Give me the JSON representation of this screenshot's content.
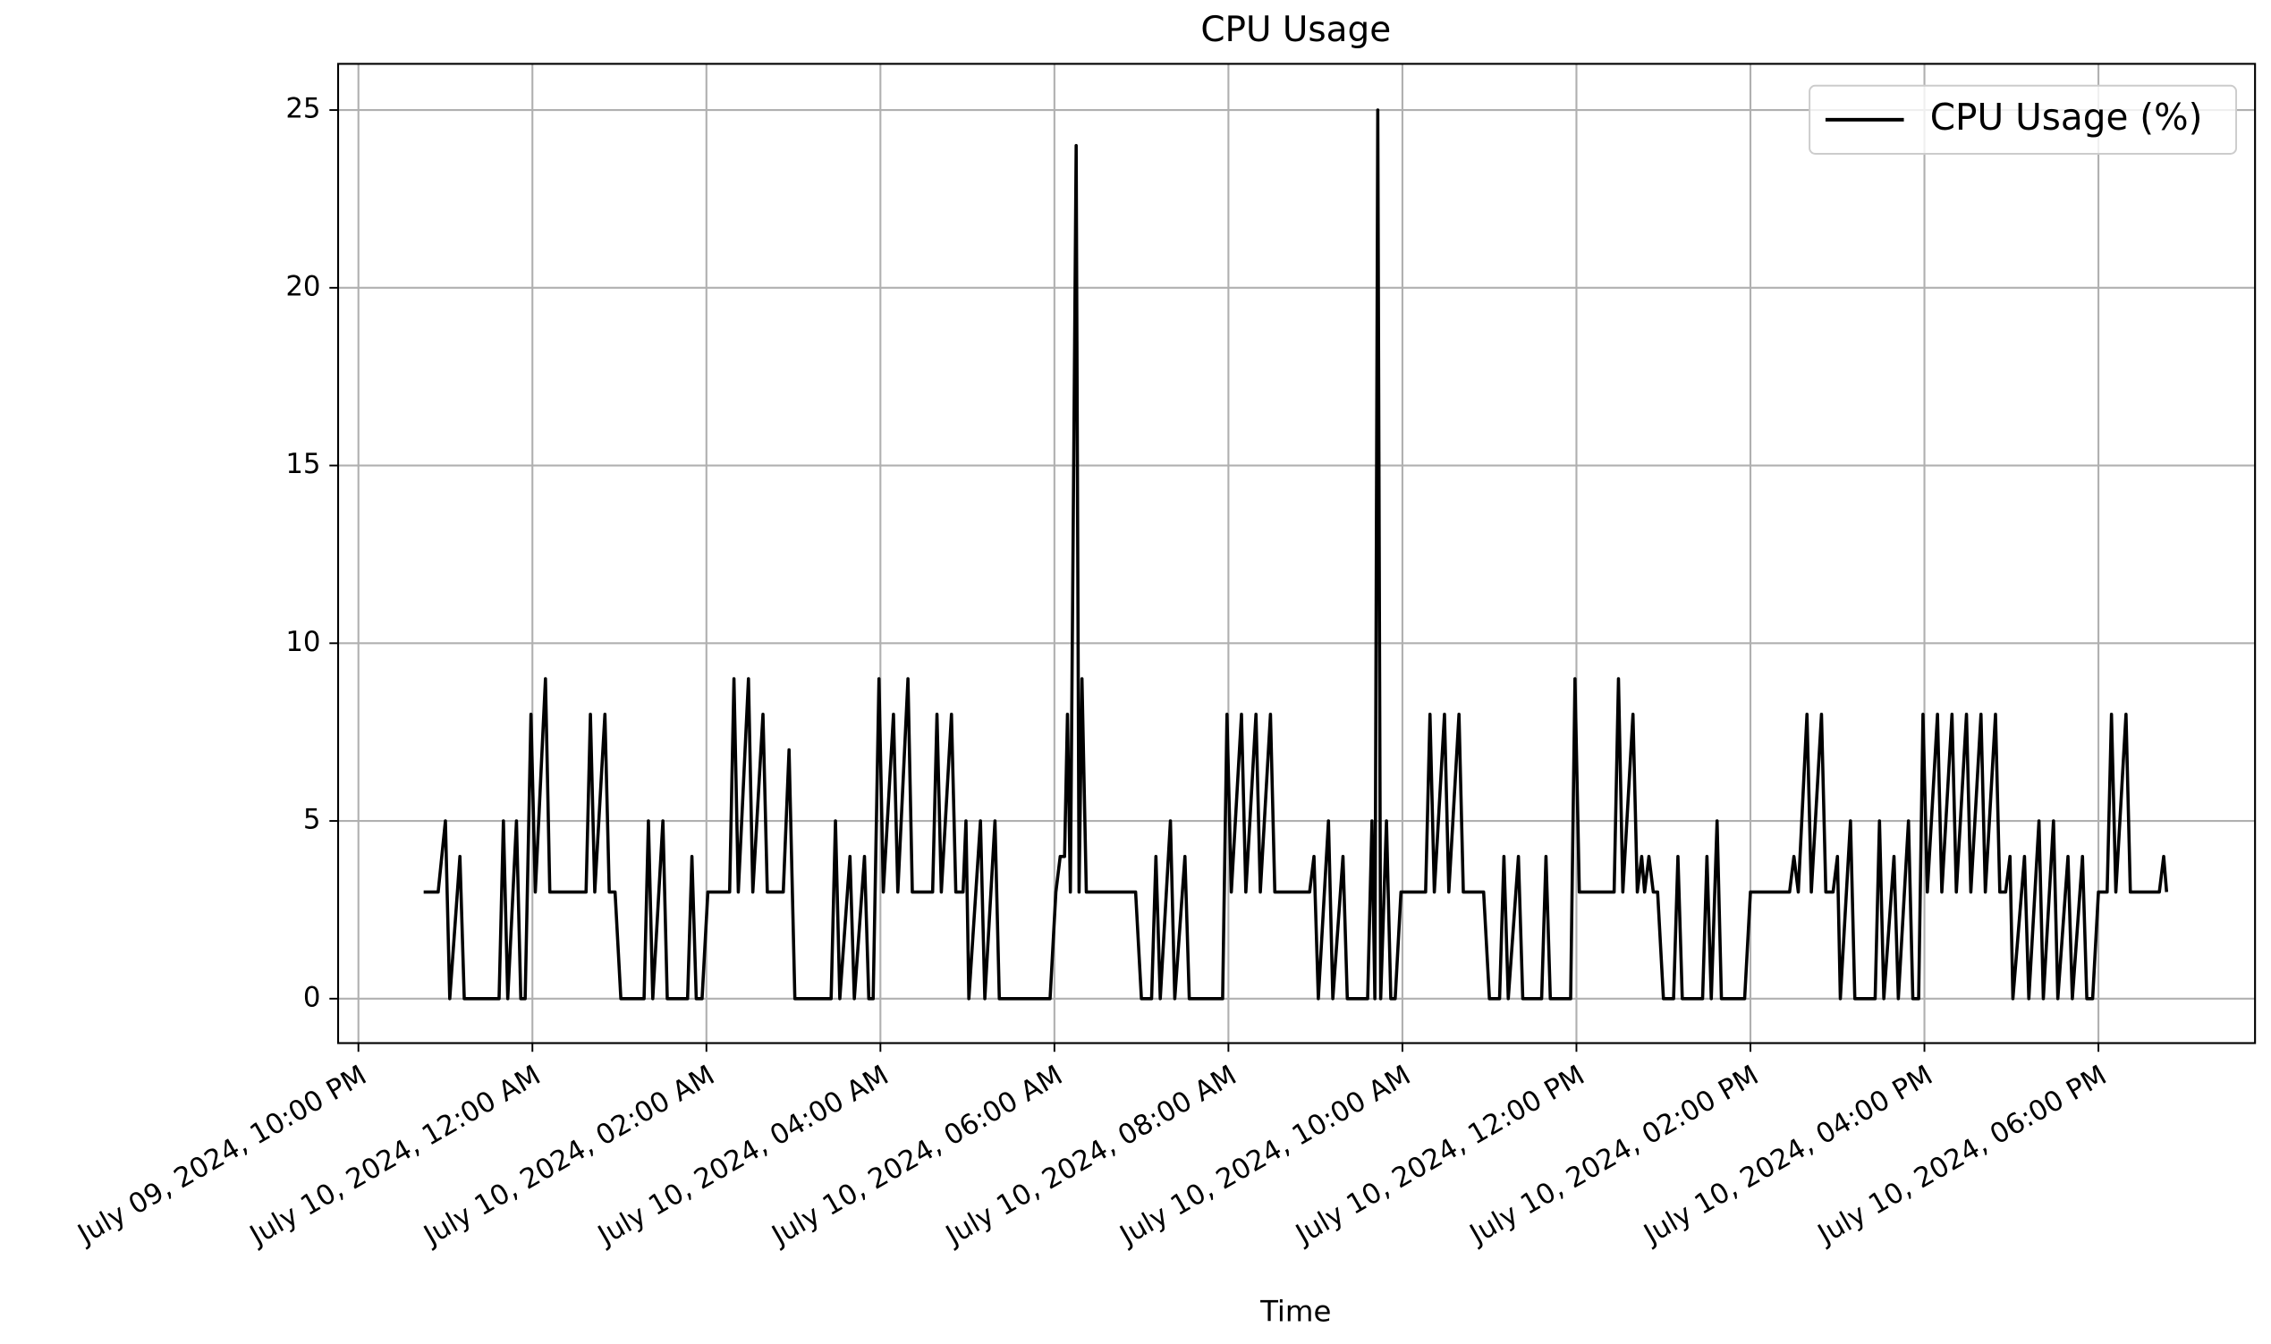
{
  "chart_data": {
    "type": "line",
    "title": "CPU Usage",
    "xlabel": "Time",
    "x": [
      "2024-07-09 22:45",
      "2024-07-09 22:55",
      "2024-07-09 23:00",
      "2024-07-09 23:03",
      "2024-07-09 23:10",
      "2024-07-09 23:13",
      "2024-07-09 23:37",
      "2024-07-09 23:40",
      "2024-07-09 23:43",
      "2024-07-09 23:49",
      "2024-07-09 23:52",
      "2024-07-09 23:55",
      "2024-07-09 23:59",
      "2024-07-10 00:02",
      "2024-07-10 00:09",
      "2024-07-10 00:12",
      "2024-07-10 00:37",
      "2024-07-10 00:40",
      "2024-07-10 00:43",
      "2024-07-10 00:50",
      "2024-07-10 00:53",
      "2024-07-10 00:57",
      "2024-07-10 01:01",
      "2024-07-10 01:17",
      "2024-07-10 01:20",
      "2024-07-10 01:23",
      "2024-07-10 01:30",
      "2024-07-10 01:33",
      "2024-07-10 01:47",
      "2024-07-10 01:50",
      "2024-07-10 01:53",
      "2024-07-10 01:57",
      "2024-07-10 02:01",
      "2024-07-10 02:16",
      "2024-07-10 02:19",
      "2024-07-10 02:22",
      "2024-07-10 02:29",
      "2024-07-10 02:32",
      "2024-07-10 02:39",
      "2024-07-10 02:42",
      "2024-07-10 02:53",
      "2024-07-10 02:57",
      "2024-07-10 03:01",
      "2024-07-10 03:26",
      "2024-07-10 03:29",
      "2024-07-10 03:32",
      "2024-07-10 03:39",
      "2024-07-10 03:42",
      "2024-07-10 03:49",
      "2024-07-10 03:52",
      "2024-07-10 03:55",
      "2024-07-10 03:59",
      "2024-07-10 04:02",
      "2024-07-10 04:09",
      "2024-07-10 04:12",
      "2024-07-10 04:19",
      "2024-07-10 04:22",
      "2024-07-10 04:36",
      "2024-07-10 04:39",
      "2024-07-10 04:42",
      "2024-07-10 04:49",
      "2024-07-10 04:52",
      "2024-07-10 04:57",
      "2024-07-10 04:59",
      "2024-07-10 05:01",
      "2024-07-10 05:09",
      "2024-07-10 05:12",
      "2024-07-10 05:19",
      "2024-07-10 05:22",
      "2024-07-10 05:57",
      "2024-07-10 06:01",
      "2024-07-10 06:04",
      "2024-07-10 06:07",
      "2024-07-10 06:09",
      "2024-07-10 06:11",
      "2024-07-10 06:15",
      "2024-07-10 06:17",
      "2024-07-10 06:19",
      "2024-07-10 06:22",
      "2024-07-10 06:56",
      "2024-07-10 07:00",
      "2024-07-10 07:07",
      "2024-07-10 07:10",
      "2024-07-10 07:13",
      "2024-07-10 07:20",
      "2024-07-10 07:23",
      "2024-07-10 07:30",
      "2024-07-10 07:33",
      "2024-07-10 07:56",
      "2024-07-10 07:59",
      "2024-07-10 08:02",
      "2024-07-10 08:09",
      "2024-07-10 08:12",
      "2024-07-10 08:19",
      "2024-07-10 08:22",
      "2024-07-10 08:29",
      "2024-07-10 08:32",
      "2024-07-10 08:56",
      "2024-07-10 08:59",
      "2024-07-10 09:02",
      "2024-07-10 09:09",
      "2024-07-10 09:12",
      "2024-07-10 09:19",
      "2024-07-10 09:22",
      "2024-07-10 09:36",
      "2024-07-10 09:39",
      "2024-07-10 09:41",
      "2024-07-10 09:43",
      "2024-07-10 09:45",
      "2024-07-10 09:49",
      "2024-07-10 09:52",
      "2024-07-10 09:55",
      "2024-07-10 09:59",
      "2024-07-10 10:16",
      "2024-07-10 10:19",
      "2024-07-10 10:22",
      "2024-07-10 10:29",
      "2024-07-10 10:32",
      "2024-07-10 10:39",
      "2024-07-10 10:42",
      "2024-07-10 10:56",
      "2024-07-10 11:00",
      "2024-07-10 11:07",
      "2024-07-10 11:10",
      "2024-07-10 11:13",
      "2024-07-10 11:20",
      "2024-07-10 11:23",
      "2024-07-10 11:36",
      "2024-07-10 11:39",
      "2024-07-10 11:42",
      "2024-07-10 11:56",
      "2024-07-10 11:59",
      "2024-07-10 12:02",
      "2024-07-10 12:26",
      "2024-07-10 12:29",
      "2024-07-10 12:32",
      "2024-07-10 12:39",
      "2024-07-10 12:42",
      "2024-07-10 12:45",
      "2024-07-10 12:47",
      "2024-07-10 12:50",
      "2024-07-10 12:53",
      "2024-07-10 12:56",
      "2024-07-10 13:00",
      "2024-07-10 13:07",
      "2024-07-10 13:10",
      "2024-07-10 13:13",
      "2024-07-10 13:27",
      "2024-07-10 13:30",
      "2024-07-10 13:33",
      "2024-07-10 13:37",
      "2024-07-10 13:40",
      "2024-07-10 13:56",
      "2024-07-10 14:00",
      "2024-07-10 14:27",
      "2024-07-10 14:30",
      "2024-07-10 14:33",
      "2024-07-10 14:39",
      "2024-07-10 14:42",
      "2024-07-10 14:49",
      "2024-07-10 14:52",
      "2024-07-10 14:57",
      "2024-07-10 15:00",
      "2024-07-10 15:02",
      "2024-07-10 15:09",
      "2024-07-10 15:12",
      "2024-07-10 15:26",
      "2024-07-10 15:29",
      "2024-07-10 15:32",
      "2024-07-10 15:39",
      "2024-07-10 15:42",
      "2024-07-10 15:49",
      "2024-07-10 15:52",
      "2024-07-10 15:56",
      "2024-07-10 15:59",
      "2024-07-10 16:02",
      "2024-07-10 16:09",
      "2024-07-10 16:12",
      "2024-07-10 16:19",
      "2024-07-10 16:22",
      "2024-07-10 16:29",
      "2024-07-10 16:32",
      "2024-07-10 16:39",
      "2024-07-10 16:42",
      "2024-07-10 16:49",
      "2024-07-10 16:52",
      "2024-07-10 16:56",
      "2024-07-10 16:59",
      "2024-07-10 17:01",
      "2024-07-10 17:09",
      "2024-07-10 17:12",
      "2024-07-10 17:19",
      "2024-07-10 17:22",
      "2024-07-10 17:29",
      "2024-07-10 17:32",
      "2024-07-10 17:39",
      "2024-07-10 17:42",
      "2024-07-10 17:49",
      "2024-07-10 17:52",
      "2024-07-10 17:56",
      "2024-07-10 18:00",
      "2024-07-10 18:06",
      "2024-07-10 18:09",
      "2024-07-10 18:12",
      "2024-07-10 18:19",
      "2024-07-10 18:22",
      "2024-07-10 18:42",
      "2024-07-10 18:45",
      "2024-07-10 18:47"
    ],
    "series": [
      {
        "name": "CPU Usage (%)",
        "color": "#000000",
        "values": [
          3,
          3,
          5,
          0,
          4,
          0,
          0,
          5,
          0,
          5,
          0,
          0,
          8,
          3,
          9,
          3,
          3,
          8,
          3,
          8,
          3,
          3,
          0,
          0,
          5,
          0,
          5,
          0,
          0,
          4,
          0,
          0,
          3,
          3,
          9,
          3,
          9,
          3,
          8,
          3,
          3,
          7,
          0,
          0,
          5,
          0,
          4,
          0,
          4,
          0,
          0,
          9,
          3,
          8,
          3,
          9,
          3,
          3,
          8,
          3,
          8,
          3,
          3,
          5,
          0,
          5,
          0,
          5,
          0,
          0,
          3,
          4,
          4,
          8,
          3,
          24,
          3,
          9,
          3,
          3,
          0,
          0,
          4,
          0,
          5,
          0,
          4,
          0,
          0,
          8,
          3,
          8,
          3,
          8,
          3,
          8,
          3,
          3,
          4,
          0,
          5,
          0,
          4,
          0,
          0,
          5,
          0,
          25,
          0,
          5,
          0,
          0,
          3,
          3,
          8,
          3,
          8,
          3,
          8,
          3,
          3,
          0,
          0,
          4,
          0,
          4,
          0,
          0,
          4,
          0,
          0,
          9,
          3,
          3,
          9,
          3,
          8,
          3,
          4,
          3,
          4,
          3,
          3,
          0,
          0,
          4,
          0,
          0,
          4,
          0,
          5,
          0,
          0,
          3,
          3,
          4,
          3,
          8,
          3,
          8,
          3,
          3,
          4,
          0,
          5,
          0,
          0,
          5,
          0,
          4,
          0,
          5,
          0,
          0,
          8,
          3,
          8,
          3,
          8,
          3,
          8,
          3,
          8,
          3,
          8,
          3,
          3,
          4,
          0,
          4,
          0,
          5,
          0,
          5,
          0,
          4,
          0,
          4,
          0,
          0,
          3,
          3,
          8,
          3,
          8,
          3,
          3,
          4,
          3
        ]
      }
    ],
    "xlim": [
      "2024-07-09 21:46",
      "2024-07-10 19:48"
    ],
    "xticks": [
      {
        "value": "2024-07-09 22:00",
        "label": "July 09, 2024, 10:00 PM"
      },
      {
        "value": "2024-07-10 00:00",
        "label": "July 10, 2024, 12:00 AM"
      },
      {
        "value": "2024-07-10 02:00",
        "label": "July 10, 2024, 02:00 AM"
      },
      {
        "value": "2024-07-10 04:00",
        "label": "July 10, 2024, 04:00 AM"
      },
      {
        "value": "2024-07-10 06:00",
        "label": "July 10, 2024, 06:00 AM"
      },
      {
        "value": "2024-07-10 08:00",
        "label": "July 10, 2024, 08:00 AM"
      },
      {
        "value": "2024-07-10 10:00",
        "label": "July 10, 2024, 10:00 AM"
      },
      {
        "value": "2024-07-10 12:00",
        "label": "July 10, 2024, 12:00 PM"
      },
      {
        "value": "2024-07-10 14:00",
        "label": "July 10, 2024, 02:00 PM"
      },
      {
        "value": "2024-07-10 16:00",
        "label": "July 10, 2024, 04:00 PM"
      },
      {
        "value": "2024-07-10 18:00",
        "label": "July 10, 2024, 06:00 PM"
      }
    ],
    "ylim": [
      -1.25,
      26.3
    ],
    "yticks": [
      0,
      5,
      10,
      15,
      20,
      25
    ],
    "grid": true,
    "legend": "upper right"
  }
}
